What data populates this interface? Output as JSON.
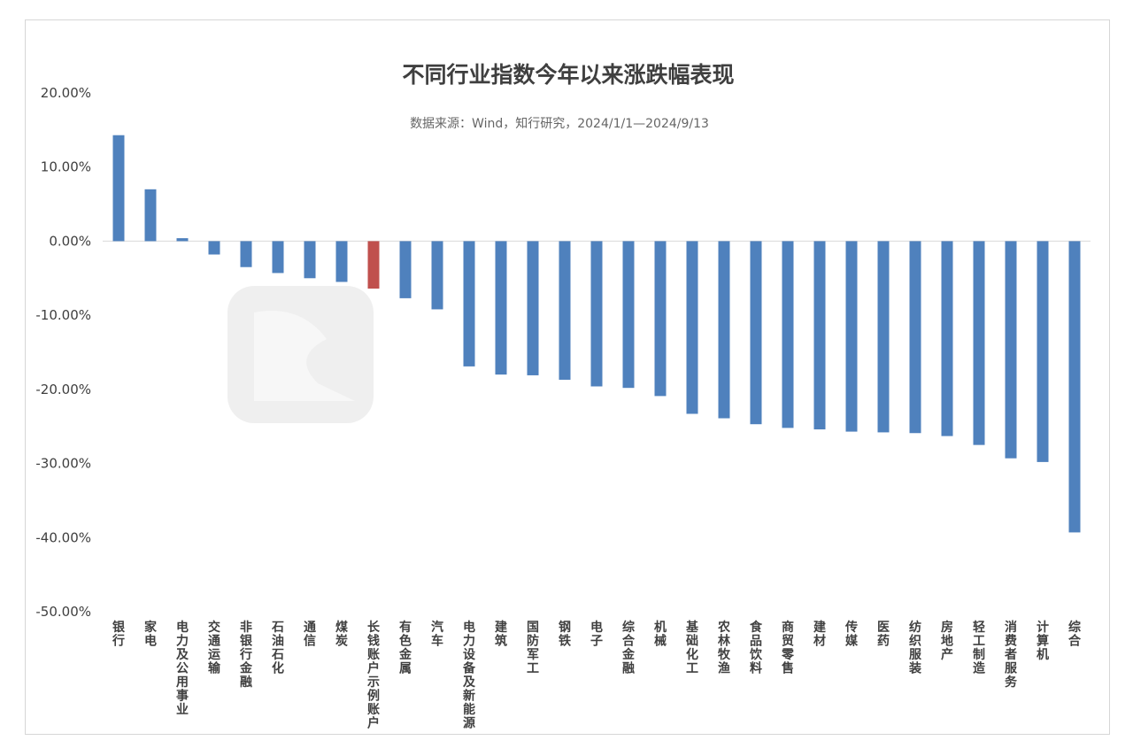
{
  "chart_data": {
    "type": "bar",
    "title": "不同行业指数今年以来涨跌幅表现",
    "subtitle": "数据来源：Wind，知行研究，2024/1/1—2024/9/13",
    "xlabel": "",
    "ylabel": "",
    "ylim": [
      -50,
      20
    ],
    "yticks": [
      20,
      10,
      0,
      -10,
      -20,
      -30,
      -40,
      -50
    ],
    "ytick_labels": [
      "20.00%",
      "10.00%",
      "0.00%",
      "-10.00%",
      "-20.00%",
      "-30.00%",
      "-40.00%",
      "-50.00%"
    ],
    "grid": false,
    "legend": "none",
    "categories": [
      "银行",
      "家电",
      "电力及公用事业",
      "交通运输",
      "非银行金融",
      "石油石化",
      "通信",
      "煤炭",
      "长钱账户示例账户",
      "有色金属",
      "汽车",
      "电力设备及新能源",
      "建筑",
      "国防军工",
      "钢铁",
      "电子",
      "综合金融",
      "机械",
      "基础化工",
      "农林牧渔",
      "食品饮料",
      "商贸零售",
      "建材",
      "传媒",
      "医药",
      "纺织服装",
      "房地产",
      "轻工制造",
      "消费者服务",
      "计算机",
      "综合"
    ],
    "values": [
      14.3,
      7.0,
      0.4,
      -1.8,
      -3.5,
      -4.3,
      -5.0,
      -5.5,
      -6.4,
      -7.7,
      -9.2,
      -16.9,
      -18.0,
      -18.1,
      -18.7,
      -19.6,
      -19.8,
      -20.9,
      -23.3,
      -23.9,
      -24.7,
      -25.2,
      -25.4,
      -25.7,
      -25.8,
      -25.9,
      -26.3,
      -27.5,
      -29.3,
      -29.8,
      -39.3
    ],
    "colors": {
      "default": "#4f81bd",
      "highlight": "#c0504d",
      "axis": "#d9d9d9"
    },
    "highlight_category": "长钱账户示例账户"
  }
}
